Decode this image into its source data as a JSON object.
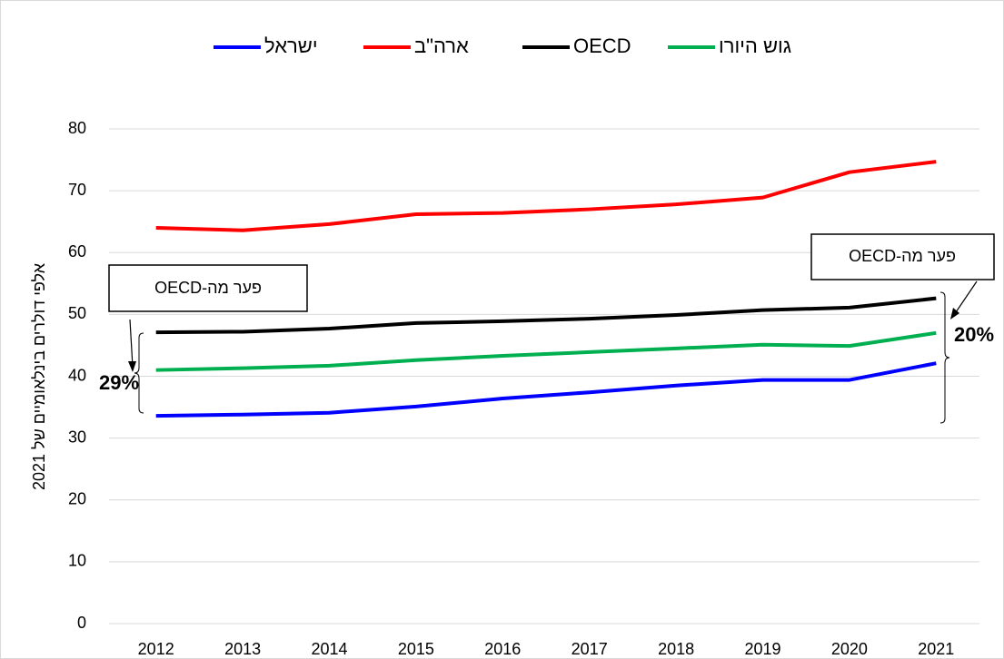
{
  "chart_data": {
    "type": "line",
    "y_label": "אלפי דולרים בינלאומיים של 2021",
    "categories": [
      "2012",
      "2013",
      "2014",
      "2015",
      "2016",
      "2017",
      "2018",
      "2019",
      "2020",
      "2021"
    ],
    "series": [
      {
        "name": "ישראל",
        "color": "#0000ff",
        "values": [
          33.6,
          33.8,
          34.1,
          35.1,
          36.4,
          37.4,
          38.5,
          39.4,
          39.4,
          42.1
        ]
      },
      {
        "name": "ארה\"ב",
        "color": "#ff0000",
        "values": [
          64.0,
          63.6,
          64.6,
          66.2,
          66.4,
          67.0,
          67.8,
          68.9,
          73.0,
          74.7
        ]
      },
      {
        "name": "OECD",
        "color": "#000000",
        "values": [
          47.1,
          47.2,
          47.7,
          48.6,
          48.9,
          49.3,
          49.9,
          50.7,
          51.1,
          52.6
        ]
      },
      {
        "name": "גוש היורו",
        "color": "#00b050",
        "values": [
          41.0,
          41.3,
          41.7,
          42.6,
          43.3,
          43.9,
          44.5,
          45.1,
          44.9,
          47.0
        ]
      }
    ],
    "ylim": [
      0,
      80
    ],
    "yticks": [
      0,
      10,
      20,
      30,
      40,
      50,
      60,
      70,
      80
    ],
    "grid": true,
    "annotations": [
      "פער מה-OECD",
      "29%",
      "פער מה-OECD",
      "20%"
    ]
  }
}
